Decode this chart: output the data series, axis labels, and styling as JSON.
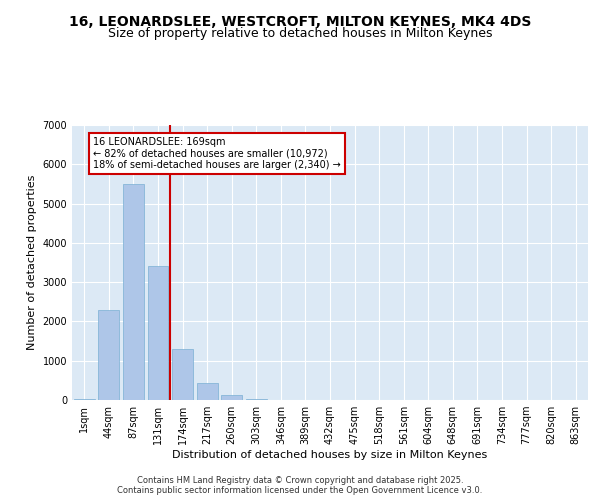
{
  "title1": "16, LEONARDSLEE, WESTCROFT, MILTON KEYNES, MK4 4DS",
  "title2": "Size of property relative to detached houses in Milton Keynes",
  "xlabel": "Distribution of detached houses by size in Milton Keynes",
  "ylabel": "Number of detached properties",
  "categories": [
    "1sqm",
    "44sqm",
    "87sqm",
    "131sqm",
    "174sqm",
    "217sqm",
    "260sqm",
    "303sqm",
    "346sqm",
    "389sqm",
    "432sqm",
    "475sqm",
    "518sqm",
    "561sqm",
    "604sqm",
    "648sqm",
    "691sqm",
    "734sqm",
    "777sqm",
    "820sqm",
    "863sqm"
  ],
  "values": [
    30,
    2280,
    5500,
    3400,
    1300,
    430,
    130,
    30,
    0,
    0,
    0,
    0,
    0,
    0,
    0,
    0,
    0,
    0,
    0,
    0,
    0
  ],
  "bar_color": "#aec6e8",
  "bar_edge_color": "#7aafd4",
  "background_color": "#dce9f5",
  "grid_color": "#ffffff",
  "vline_color": "#cc0000",
  "vline_pos": 3.5,
  "annotation_text": "16 LEONARDSLEE: 169sqm\n← 82% of detached houses are smaller (10,972)\n18% of semi-detached houses are larger (2,340) →",
  "annotation_box_color": "#cc0000",
  "annotation_text_color": "#000000",
  "ylim": [
    0,
    7000
  ],
  "yticks": [
    0,
    1000,
    2000,
    3000,
    4000,
    5000,
    6000,
    7000
  ],
  "footer": "Contains HM Land Registry data © Crown copyright and database right 2025.\nContains public sector information licensed under the Open Government Licence v3.0.",
  "title_fontsize": 10,
  "subtitle_fontsize": 9,
  "axis_label_fontsize": 8,
  "tick_fontsize": 7,
  "footer_fontsize": 6
}
